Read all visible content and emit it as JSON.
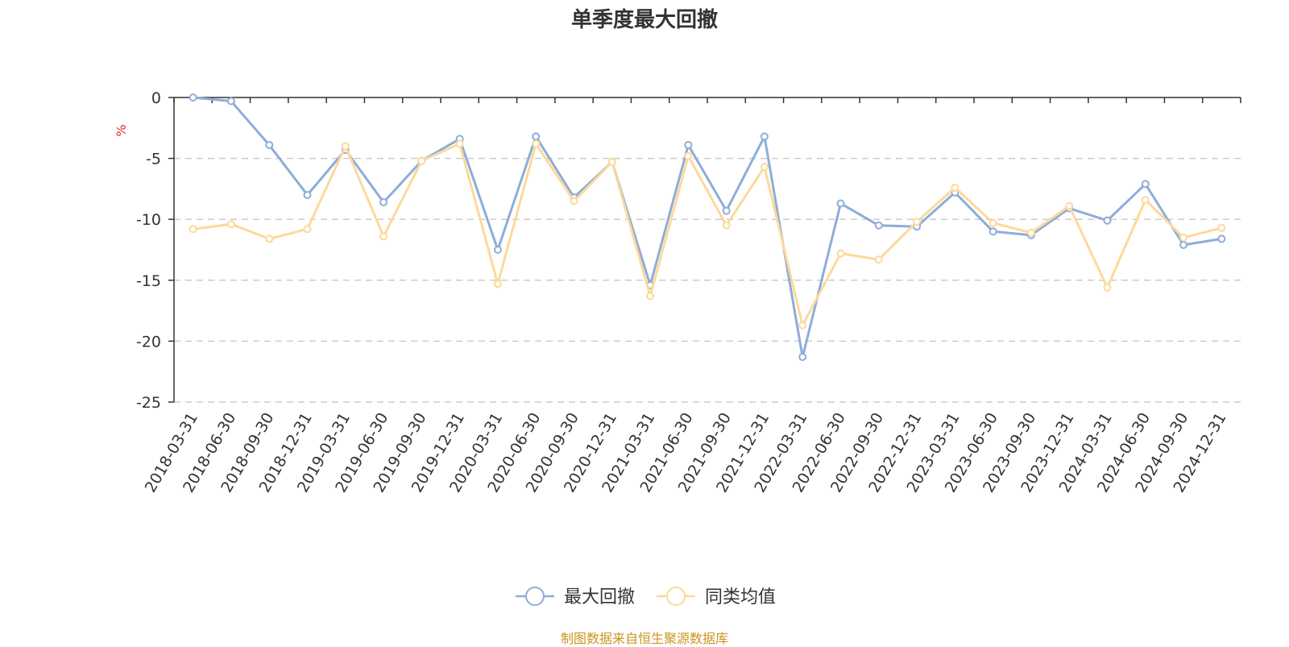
{
  "chart_data": {
    "type": "line",
    "title": "单季度最大回撤",
    "ylabel": "%",
    "xlabel": "",
    "ylim": [
      -25,
      0
    ],
    "yticks": [
      0,
      -5,
      -10,
      -15,
      -20,
      -25
    ],
    "grid": "horizontal-dashed",
    "legend_position": "bottom-center",
    "categories": [
      "2018-03-31",
      "2018-06-30",
      "2018-09-30",
      "2018-12-31",
      "2019-03-31",
      "2019-06-30",
      "2019-09-30",
      "2019-12-31",
      "2020-03-31",
      "2020-06-30",
      "2020-09-30",
      "2020-12-31",
      "2021-03-31",
      "2021-06-30",
      "2021-09-30",
      "2021-12-31",
      "2022-03-31",
      "2022-06-30",
      "2022-09-30",
      "2022-12-31",
      "2023-03-31",
      "2023-06-30",
      "2023-09-30",
      "2023-12-31",
      "2024-03-31",
      "2024-06-30",
      "2024-09-30",
      "2024-12-31"
    ],
    "series": [
      {
        "name": "最大回撤",
        "color": "#8eadd9",
        "values": [
          0.0,
          -0.3,
          -3.9,
          -8.0,
          -4.3,
          -8.6,
          -5.2,
          -3.4,
          -12.5,
          -3.2,
          -8.2,
          -5.3,
          -15.4,
          -3.9,
          -9.3,
          -3.2,
          -21.3,
          -8.7,
          -10.5,
          -10.6,
          -7.8,
          -11.0,
          -11.3,
          -9.1,
          -10.1,
          -7.1,
          -12.1,
          -11.6
        ]
      },
      {
        "name": "同类均值",
        "color": "#fdd99a",
        "values": [
          -10.8,
          -10.4,
          -11.6,
          -10.8,
          -4.0,
          -11.4,
          -5.2,
          -3.8,
          -15.3,
          -3.8,
          -8.5,
          -5.3,
          -16.3,
          -4.8,
          -10.5,
          -5.7,
          -18.7,
          -12.8,
          -13.3,
          -10.2,
          -7.4,
          -10.3,
          -11.1,
          -8.9,
          -15.6,
          -8.4,
          -11.5,
          -10.7
        ]
      }
    ]
  },
  "source_note": "制图数据来自恒生聚源数据库"
}
